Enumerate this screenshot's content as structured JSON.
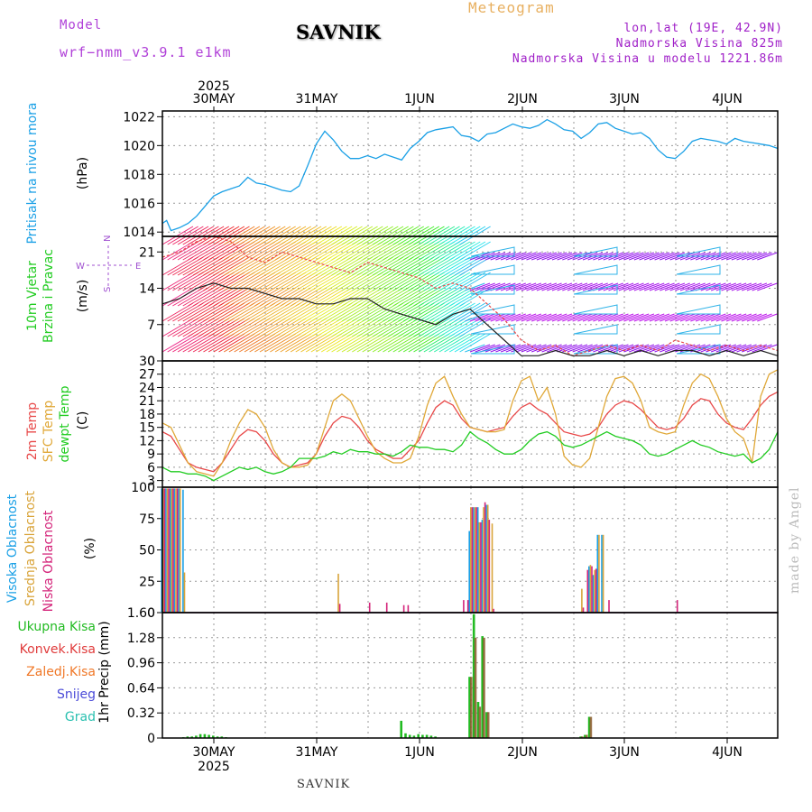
{
  "header": {
    "model_label": "Model",
    "model_name": "wrf−nmm_v3.9.1  e1km",
    "station": "SAVNIK",
    "product": "Meteogram",
    "coords": "lon,lat (19E, 42.9N)",
    "elevation": "Nadmorska Visina 825m",
    "model_elevation": "Nadmorska Visina u modelu 1221.86m",
    "footer_station": "SAVNIK",
    "credit": "made by Angel"
  },
  "colors": {
    "pressure": "#1aa0e6",
    "dewpoint": "#22cc22",
    "temp2m": "#e84848",
    "sfctemp": "#e0a838",
    "high_cloud": "#1aa0e6",
    "mid_cloud": "#d9a43a",
    "low_cloud": "#d4247a",
    "total_precip": "#22bb22",
    "conv_precip": "#e03b3b",
    "frozen": "#f07828",
    "snow": "#4b4bd8",
    "hail": "#2ac0b0",
    "model_label": "#b040d8",
    "coords": "#a020c8",
    "product": "#e8b060"
  },
  "time_axis": {
    "year_label": "2025",
    "top_labels": [
      "30MAY",
      "31MAY",
      "1JUN",
      "2JUN",
      "3JUN",
      "4JUN"
    ],
    "bottom_labels": [
      "30MAY",
      "31MAY",
      "1JUN",
      "2JUN",
      "3JUN",
      "4JUN"
    ],
    "start_hour": 0,
    "end_hour": 144
  },
  "chart_data": [
    {
      "type": "line",
      "ylabel": "Pritisak na nivou mora",
      "unit": "(hPa)",
      "ylim": [
        1013.7,
        1022.4
      ],
      "yticks": [
        1014,
        1016,
        1018,
        1020,
        1022
      ],
      "x_hours": [
        0,
        1,
        2,
        4,
        6,
        8,
        10,
        12,
        14,
        16,
        18,
        20,
        22,
        24,
        26,
        28,
        30,
        32,
        34,
        36,
        38,
        40,
        42,
        44,
        46,
        48,
        50,
        52,
        54,
        56,
        58,
        60,
        62,
        64,
        66,
        68,
        70,
        72,
        74,
        76,
        78,
        80,
        82,
        84,
        86,
        88,
        90,
        92,
        94,
        96,
        98,
        100,
        102,
        104,
        106,
        108,
        110,
        112,
        114,
        116,
        118,
        120,
        122,
        124,
        126,
        128,
        130,
        132,
        134,
        136,
        138,
        140,
        142,
        144
      ],
      "series": [
        {
          "values": [
            1014.6,
            1014.8,
            1014.1,
            1014.3,
            1014.6,
            1015.1,
            1015.8,
            1016.5,
            1016.8,
            1017.0,
            1017.2,
            1017.8,
            1017.4,
            1017.3,
            1017.1,
            1016.9,
            1016.8,
            1017.2,
            1018.6,
            1020.1,
            1021.0,
            1020.4,
            1019.6,
            1019.1,
            1019.1,
            1019.3,
            1019.1,
            1019.4,
            1019.2,
            1019.0,
            1019.8,
            1020.3,
            1020.9,
            1021.1,
            1021.2,
            1021.3,
            1020.7,
            1020.6,
            1020.3,
            1020.8,
            1020.9,
            1021.2,
            1021.5,
            1021.3,
            1021.2,
            1021.4,
            1021.8,
            1021.5,
            1021.1,
            1021.0,
            1020.5,
            1020.9,
            1021.5,
            1021.6,
            1021.2,
            1021.0,
            1020.8,
            1020.9,
            1020.5,
            1019.7,
            1019.2,
            1019.1,
            1019.6,
            1020.3,
            1020.5,
            1020.4,
            1020.3,
            1020.1,
            1020.5,
            1020.3,
            1020.2,
            1020.1,
            1020.0,
            1019.8
          ]
        }
      ]
    },
    {
      "type": "line",
      "ylabel": "10m Vjetar",
      "ylabel2": "Brzina i Pravac",
      "unit": "(m/s)",
      "ylim": [
        0,
        24
      ],
      "yticks": [
        0,
        7,
        14,
        21
      ],
      "legend": {
        "n": "N",
        "e": "E",
        "s": "S",
        "w": "W"
      },
      "x_hours": [
        0,
        4,
        8,
        12,
        16,
        20,
        24,
        28,
        32,
        36,
        40,
        44,
        48,
        52,
        56,
        60,
        64,
        68,
        72,
        76,
        80,
        84,
        88,
        92,
        96,
        100,
        104,
        108,
        112,
        116,
        120,
        124,
        128,
        132,
        136,
        140,
        144
      ],
      "series": [
        {
          "name": "gust",
          "values": [
            20,
            21,
            23,
            24,
            23,
            20,
            19,
            21,
            20,
            19,
            18,
            17,
            19,
            18,
            17,
            16,
            14,
            15,
            14,
            11,
            8,
            4,
            2,
            3,
            1,
            2,
            3,
            2,
            3,
            2,
            4,
            3,
            2,
            3,
            2,
            3,
            2
          ]
        },
        {
          "name": "wind",
          "values": [
            11,
            12,
            14,
            15,
            14,
            14,
            13,
            12,
            12,
            11,
            11,
            12,
            12,
            10,
            9,
            8,
            7,
            9,
            10,
            7,
            4,
            1,
            1,
            2,
            1,
            1,
            2,
            1,
            2,
            1,
            2,
            2,
            1,
            2,
            1,
            2,
            1
          ]
        }
      ]
    },
    {
      "type": "line",
      "ylabel": "2m Temp",
      "ylabel2": "SFC Temp",
      "ylabel3": "dewpt Temp",
      "unit": "(C)",
      "ylim": [
        1.5,
        30
      ],
      "yticks": [
        3,
        6,
        9,
        12,
        15,
        18,
        21,
        24,
        27,
        30
      ],
      "x_hours": [
        0,
        2,
        4,
        6,
        8,
        10,
        12,
        14,
        16,
        18,
        20,
        22,
        24,
        26,
        28,
        30,
        32,
        34,
        36,
        38,
        40,
        42,
        44,
        46,
        48,
        50,
        52,
        54,
        56,
        58,
        60,
        62,
        64,
        66,
        68,
        70,
        72,
        74,
        76,
        78,
        80,
        82,
        84,
        86,
        88,
        90,
        92,
        94,
        96,
        98,
        100,
        102,
        104,
        106,
        108,
        110,
        112,
        114,
        116,
        118,
        120,
        122,
        124,
        126,
        128,
        130,
        132,
        134,
        136,
        138,
        140,
        142,
        144
      ],
      "series": [
        {
          "name": "2m Temp",
          "values": [
            14,
            13,
            10,
            7,
            6,
            5.5,
            5,
            7,
            10,
            13,
            14.5,
            14,
            12,
            9,
            7,
            6,
            6.5,
            7,
            9,
            13,
            16,
            17.5,
            17,
            15,
            12,
            10,
            9,
            8,
            8,
            10,
            12,
            16,
            19.5,
            21,
            20,
            17,
            15,
            14.5,
            14,
            14.5,
            15,
            17.5,
            19.5,
            20.5,
            19,
            18,
            16,
            14,
            13.5,
            13,
            13.5,
            15,
            18,
            20,
            21,
            20.5,
            19,
            17,
            15,
            14.5,
            15,
            17,
            20,
            21.5,
            21,
            18,
            16,
            15,
            14.5,
            17,
            20,
            22,
            23
          ]
        },
        {
          "name": "SFC Temp",
          "values": [
            16,
            15,
            11,
            7,
            5,
            4.5,
            4,
            7,
            12,
            16,
            19,
            18,
            15,
            10,
            7,
            6,
            6,
            6.5,
            9,
            15,
            21,
            22.5,
            21,
            17,
            13,
            9.5,
            8,
            7,
            7,
            8,
            13,
            20,
            25,
            26.5,
            22,
            18,
            15,
            14.5,
            14,
            14,
            14.5,
            21,
            25.5,
            26.5,
            21,
            24,
            18,
            8.5,
            6.5,
            6,
            8,
            15,
            22,
            26,
            26.5,
            25,
            21,
            15,
            14,
            13.5,
            14,
            20,
            25,
            27,
            26,
            22,
            17,
            14,
            12.5,
            7,
            22,
            27,
            28
          ]
        },
        {
          "name": "dewpt Temp",
          "values": [
            6,
            5,
            5,
            4.5,
            4.5,
            4,
            3,
            4,
            5,
            6,
            5.5,
            6,
            5,
            4.5,
            5,
            6,
            8,
            8,
            8,
            8.5,
            9.5,
            9,
            10,
            9.5,
            9.5,
            9,
            9,
            8.5,
            9.5,
            11,
            10.5,
            10.5,
            10,
            10,
            9.5,
            11,
            14,
            12.5,
            11.5,
            10,
            9,
            9,
            10,
            12,
            13.5,
            14,
            13,
            11,
            10.5,
            11,
            12,
            13,
            14,
            13,
            12.5,
            12,
            11,
            9,
            8.5,
            9,
            10,
            11,
            12,
            11,
            10.5,
            9.5,
            9,
            8.5,
            9,
            7,
            8,
            10,
            14
          ]
        }
      ]
    },
    {
      "type": "bar",
      "ylabel": "Visoka Oblacnost",
      "ylabel2": "Srednja Oblacnost",
      "ylabel3": "Niska Oblacnost",
      "unit": "(%)",
      "ylim": [
        0,
        100
      ],
      "yticks": [
        0,
        25,
        50,
        75,
        100
      ],
      "x_hours": [
        0,
        1,
        2,
        3,
        4,
        5,
        41,
        48,
        52,
        56,
        57,
        70,
        71,
        72,
        73,
        74,
        75,
        76,
        77,
        98,
        99,
        100,
        101,
        102,
        103,
        104,
        120
      ],
      "series": [
        {
          "name": "Visoka Oblacnost",
          "values": [
            99,
            99,
            99,
            99,
            99,
            98,
            0,
            0,
            0,
            0,
            0,
            0,
            0,
            65,
            84,
            84,
            74,
            86,
            0,
            0,
            0,
            37,
            30,
            62,
            62,
            0,
            0
          ]
        },
        {
          "name": "Srednja Oblacnost",
          "values": [
            99,
            99,
            99,
            99,
            99,
            32,
            31,
            0,
            0,
            0,
            0,
            0,
            0,
            84,
            84,
            72,
            84,
            86,
            71,
            19,
            0,
            38,
            34,
            62,
            62,
            0,
            0
          ]
        },
        {
          "name": "Niska Oblacnost",
          "values": [
            99,
            99,
            99,
            99,
            0,
            0,
            7,
            8,
            8,
            6,
            6,
            10,
            10,
            84,
            84,
            72,
            88,
            74,
            3,
            4,
            34,
            37,
            35,
            0,
            0,
            10,
            10
          ]
        }
      ]
    },
    {
      "type": "bar",
      "ylabel": "1hr Precip",
      "unit": "(mm)",
      "ylim": [
        0,
        1.6
      ],
      "yticks": [
        0,
        0.32,
        0.64,
        0.96,
        1.28,
        1.6
      ],
      "legend": [
        "Ukupna  Kisa",
        "Konvek.Kisa",
        "Zaledj.Kisa",
        "Snijeg",
        "Grad"
      ],
      "x_hours": [
        5,
        6,
        7,
        8,
        9,
        10,
        11,
        12,
        13,
        14,
        15,
        56,
        57,
        58,
        59,
        60,
        61,
        62,
        63,
        64,
        72,
        73,
        74,
        75,
        76,
        77,
        98,
        99,
        100,
        101
      ],
      "series": [
        {
          "name": "Ukupna Kisa",
          "values": [
            0.01,
            0.02,
            0.02,
            0.03,
            0.05,
            0.05,
            0.04,
            0.03,
            0.02,
            0.02,
            0.01,
            0.22,
            0.06,
            0.04,
            0.03,
            0.05,
            0.04,
            0.04,
            0.03,
            0.02,
            0.78,
            1.58,
            0.46,
            1.3,
            0.33,
            0.0,
            0.02,
            0.04,
            0.27,
            0.0
          ]
        },
        {
          "name": "Konvek.Kisa",
          "values": [
            0,
            0,
            0,
            0,
            0,
            0,
            0,
            0,
            0,
            0,
            0,
            0,
            0,
            0,
            0,
            0,
            0,
            0,
            0,
            0,
            0.78,
            1.28,
            0.4,
            1.28,
            0.33,
            0,
            0.02,
            0.04,
            0.27,
            0
          ]
        }
      ]
    }
  ]
}
